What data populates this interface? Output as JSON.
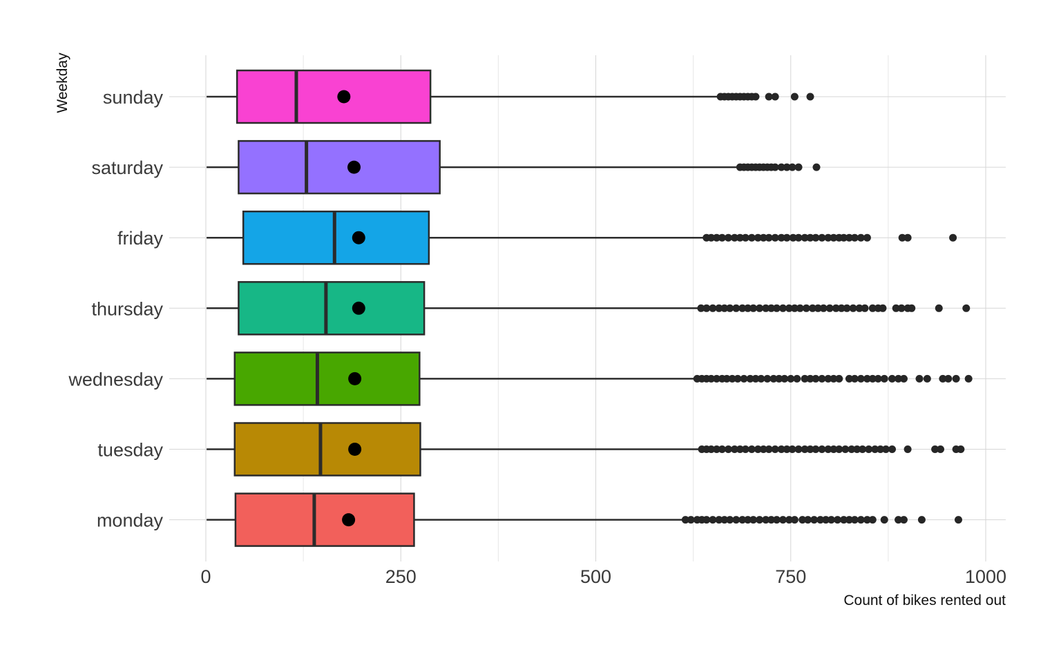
{
  "chart_data": {
    "type": "boxplot",
    "orientation": "horizontal",
    "xlabel": "Count of bikes rented out",
    "ylabel": "Weekday",
    "xlim": [
      0,
      1020
    ],
    "xticks": [
      0,
      250,
      500,
      750,
      1000
    ],
    "xtick_labels": [
      "0",
      "250",
      "500",
      "750",
      "1000"
    ],
    "grid": true,
    "legend": "none",
    "mean_marker": "black dot",
    "categories": [
      "sunday",
      "saturday",
      "friday",
      "thursday",
      "wednesday",
      "tuesday",
      "monday"
    ],
    "series": [
      {
        "category": "sunday",
        "color": "#F942D2",
        "whisker_low": 1,
        "q1": 40,
        "median": 116,
        "q3": 288,
        "whisker_high": 657,
        "mean": 177,
        "outliers": [
          660,
          665,
          670,
          675,
          680,
          685,
          690,
          695,
          700,
          705,
          722,
          730,
          755,
          775
        ]
      },
      {
        "category": "saturday",
        "color": "#9471FF",
        "whisker_low": 1,
        "q1": 42,
        "median": 129,
        "q3": 300,
        "whisker_high": 682,
        "mean": 190,
        "outliers": [
          685,
          690,
          695,
          700,
          705,
          710,
          715,
          720,
          725,
          730,
          738,
          745,
          752,
          760,
          783
        ]
      },
      {
        "category": "friday",
        "color": "#14A5E7",
        "whisker_low": 1,
        "q1": 48,
        "median": 165,
        "q3": 286,
        "whisker_high": 638,
        "mean": 196,
        "outliers": [
          642,
          648,
          655,
          662,
          670,
          678,
          685,
          692,
          700,
          708,
          715,
          722,
          730,
          738,
          745,
          753,
          760,
          768,
          775,
          782,
          790,
          798,
          805,
          812,
          818,
          825,
          832,
          840,
          848,
          893,
          900,
          958
        ]
      },
      {
        "category": "thursday",
        "color": "#17B786",
        "whisker_low": 1,
        "q1": 42,
        "median": 154,
        "q3": 280,
        "whisker_high": 632,
        "mean": 196,
        "outliers": [
          635,
          642,
          650,
          658,
          665,
          672,
          680,
          688,
          695,
          702,
          710,
          718,
          725,
          732,
          740,
          748,
          755,
          762,
          770,
          778,
          785,
          792,
          800,
          808,
          815,
          822,
          830,
          838,
          845,
          855,
          862,
          868,
          885,
          892,
          900,
          905,
          940,
          975
        ]
      },
      {
        "category": "wednesday",
        "color": "#48A700",
        "whisker_low": 1,
        "q1": 37,
        "median": 143,
        "q3": 274,
        "whisker_high": 626,
        "mean": 191,
        "outliers": [
          630,
          636,
          642,
          648,
          655,
          662,
          668,
          675,
          682,
          690,
          698,
          705,
          712,
          720,
          728,
          735,
          742,
          750,
          758,
          768,
          775,
          782,
          790,
          798,
          805,
          812,
          825,
          832,
          840,
          848,
          855,
          862,
          870,
          880,
          888,
          895,
          915,
          925,
          945,
          952,
          962,
          978
        ]
      },
      {
        "category": "tuesday",
        "color": "#B88905",
        "whisker_low": 1,
        "q1": 37,
        "median": 147,
        "q3": 275,
        "whisker_high": 632,
        "mean": 191,
        "outliers": [
          636,
          642,
          648,
          655,
          662,
          670,
          678,
          685,
          692,
          700,
          708,
          715,
          722,
          730,
          738,
          745,
          752,
          760,
          768,
          775,
          782,
          790,
          798,
          805,
          812,
          820,
          828,
          835,
          842,
          850,
          858,
          865,
          872,
          880,
          900,
          935,
          942,
          962,
          968
        ]
      },
      {
        "category": "monday",
        "color": "#F2605B",
        "whisker_low": 1,
        "q1": 38,
        "median": 139,
        "q3": 267,
        "whisker_high": 612,
        "mean": 183,
        "outliers": [
          615,
          622,
          630,
          636,
          642,
          650,
          658,
          665,
          672,
          680,
          688,
          695,
          702,
          710,
          718,
          725,
          732,
          740,
          748,
          755,
          765,
          772,
          780,
          788,
          795,
          802,
          810,
          818,
          825,
          832,
          840,
          848,
          855,
          870,
          888,
          895,
          918,
          965
        ]
      }
    ]
  }
}
